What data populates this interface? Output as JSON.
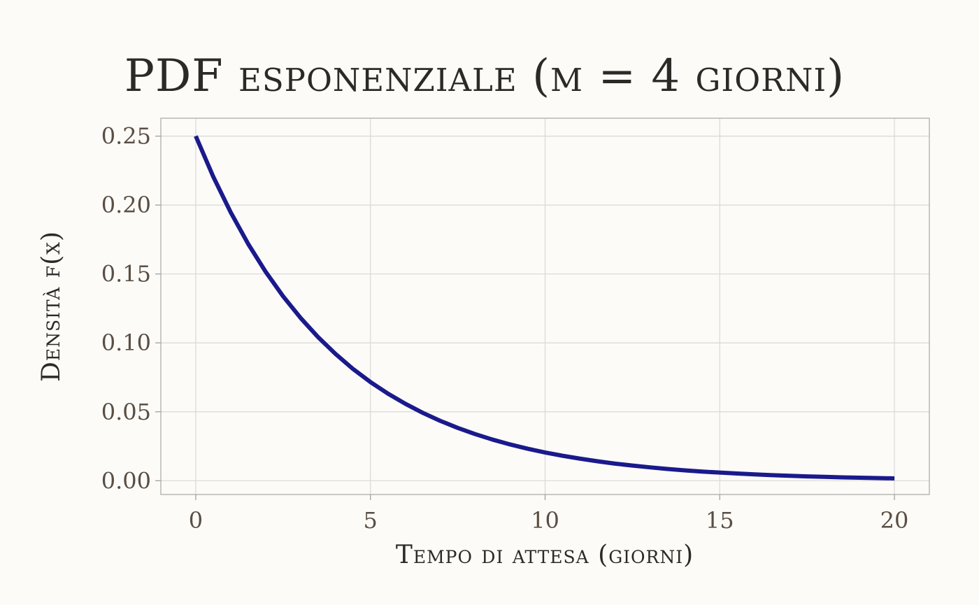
{
  "chart_data": {
    "type": "line",
    "title": "PDF esponenziale (μ = 4 giorni)",
    "xlabel": "Tempo di attesa (giorni)",
    "ylabel": "Densità f(x)",
    "xlim": [
      -1,
      21
    ],
    "ylim": [
      -0.01,
      0.263
    ],
    "x_ticks": [
      0,
      5,
      10,
      15,
      20
    ],
    "x_tick_labels": [
      "0",
      "5",
      "10",
      "15",
      "20"
    ],
    "y_ticks": [
      0.0,
      0.05,
      0.1,
      0.15,
      0.2,
      0.25
    ],
    "y_tick_labels": [
      "0.00",
      "0.05",
      "0.10",
      "0.15",
      "0.20",
      "0.25"
    ],
    "grid": true,
    "legend": "none",
    "series": [
      {
        "color": "#1a1a8c",
        "x": [
          0,
          0.5,
          1,
          1.5,
          2,
          2.5,
          3,
          3.5,
          4,
          4.5,
          5,
          5.5,
          6,
          6.5,
          7,
          7.5,
          8,
          8.5,
          9,
          9.5,
          10,
          10.5,
          11,
          11.5,
          12,
          12.5,
          13,
          13.5,
          14,
          14.5,
          15,
          15.5,
          16,
          16.5,
          17,
          17.5,
          18,
          18.5,
          19,
          19.5,
          20
        ],
        "values": [
          0.25,
          0.2206,
          0.1947,
          0.1718,
          0.1516,
          0.1338,
          0.1181,
          0.1042,
          0.092,
          0.0811,
          0.0716,
          0.0632,
          0.0558,
          0.0492,
          0.0434,
          0.0383,
          0.0338,
          0.0298,
          0.0263,
          0.0232,
          0.0205,
          0.0181,
          0.016,
          0.0141,
          0.0124,
          0.011,
          0.0097,
          0.0085,
          0.0075,
          0.0066,
          0.0059,
          0.0052,
          0.0046,
          0.004,
          0.0036,
          0.0031,
          0.0028,
          0.0024,
          0.0022,
          0.0019,
          0.0017
        ]
      }
    ]
  }
}
